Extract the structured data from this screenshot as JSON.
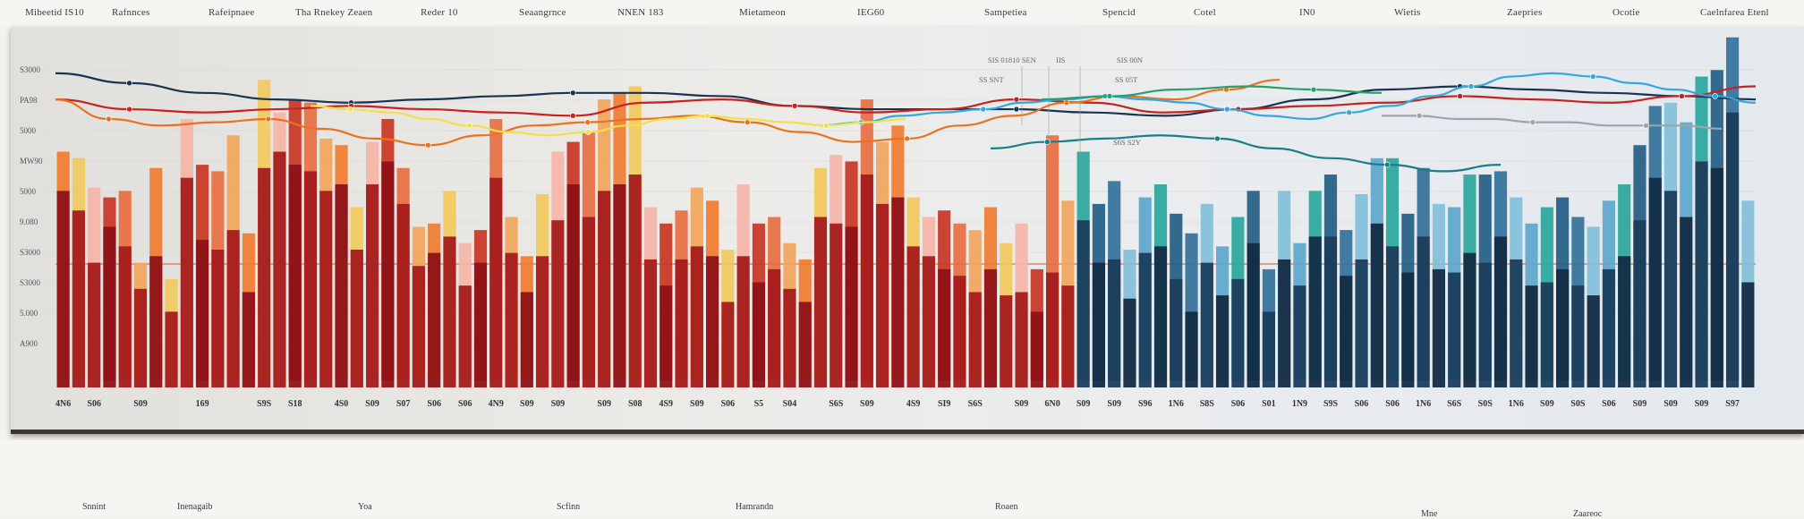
{
  "header": {
    "labels": [
      "Mibeetid IS10",
      "Rafnnces",
      "Rafeipnaee",
      "Tha Rnekey Zeaen",
      "Reder 10",
      "Seaangrnce",
      "NNEN 183",
      "Mietameon",
      "IEG60",
      "Sampetiea",
      "Spencid",
      "Cotel",
      "IN0",
      "Wietis",
      "Zaepries",
      "Ocotie",
      "Caelnfarea Etenl"
    ]
  },
  "footer": {
    "labels": [
      "Snnint",
      "Inenagaib",
      "Yoa",
      "Scfinn",
      "Hamrandn",
      "Roaen",
      "Mne",
      "Zaareoc"
    ]
  },
  "colors": {
    "warm_dark": "#8e1217",
    "warm_mid": "#c8321f",
    "warm_orange": "#ef7a2c",
    "warm_yellow": "#f2c95a",
    "warm_pink": "#f6b4a6",
    "cool_dark": "#132c45",
    "cool_mid": "#2f6f99",
    "cool_light": "#5aa6cc",
    "teal": "#26a69a",
    "line_navy": "#1a3352",
    "line_red": "#c4231f",
    "line_orange": "#e8731f",
    "line_blue": "#33a8dc",
    "line_teal": "#1c7d86",
    "line_yellow": "#f2e04a",
    "line_green": "#2a9d6a",
    "line_grey": "#9aa5ad"
  },
  "chart_data": {
    "type": "bar",
    "ylim": [
      0,
      10
    ],
    "ylabel": "",
    "xlabel": "",
    "y_ticks": [
      "S3000",
      "PA98",
      "5000",
      "MW90",
      "5000",
      "9.080",
      "S3000",
      "S3000",
      "5.000",
      "A900"
    ],
    "annotations": [
      "SIS 01810 SEN",
      "IIS",
      "SIS 00N",
      "SS SNT",
      "SS 05T",
      "S6S S2Y"
    ],
    "x_labels": [
      "4N6",
      "S06",
      "S09",
      "169",
      "S9S",
      "S18",
      "4S0",
      "S09",
      "S07",
      "S06",
      "S06",
      "4N9",
      "S09",
      "S09",
      "S09",
      "S08",
      "4S9",
      "S09",
      "S06",
      "S5",
      "S04",
      "S6S",
      "S09",
      "4S9",
      "SI9",
      "S6S",
      "S09",
      "6N0",
      "S09",
      "S09",
      "S96",
      "1N6",
      "S8S",
      "S06",
      "S01",
      "1N9",
      "S9S",
      "S06",
      "S06",
      "1N6",
      "S6S",
      "S0S",
      "1N6",
      "S09",
      "S0S",
      "S06",
      "S09",
      "S09",
      "S09",
      "S97"
    ],
    "x_label_positions": [
      0,
      2,
      5,
      9,
      13,
      15,
      18,
      20,
      22,
      24,
      26,
      28,
      30,
      32,
      35,
      37,
      39,
      41,
      43,
      45,
      47,
      50,
      52,
      55,
      57,
      59,
      62,
      64,
      66,
      68,
      70,
      72,
      74,
      76,
      78,
      80,
      82,
      84,
      86,
      88,
      90,
      92,
      94,
      96,
      98,
      100,
      102,
      104,
      106,
      108
    ],
    "series": [
      {
        "values": [
          5.8,
          5.2,
          3.6,
          4.7,
          4.1,
          2.8,
          3.8,
          2.1,
          6.2,
          4.3,
          4.0,
          4.6,
          2.7,
          6.5,
          7.0,
          6.6,
          6.4,
          5.8,
          6.0,
          4.0,
          6.0,
          6.7,
          5.4,
          3.5,
          3.9,
          4.4,
          2.9,
          3.6,
          6.2,
          3.9,
          2.7,
          3.8,
          4.9,
          6.0,
          5.0,
          5.8,
          6.0,
          6.3,
          3.7,
          2.9,
          3.7,
          4.1,
          3.8,
          2.4,
          3.8,
          3.0,
          3.4,
          2.8,
          2.4,
          5.0,
          4.8,
          4.7,
          6.3,
          5.4,
          5.6,
          4.1,
          3.8,
          3.4,
          3.2,
          2.7,
          3.4,
          2.6,
          2.7,
          2.1,
          3.3,
          2.9,
          4.9,
          3.6,
          3.7,
          2.5,
          3.9,
          4.1,
          3.1,
          2.1,
          3.6,
          2.6,
          3.1,
          4.2,
          2.1,
          3.7,
          2.9,
          4.4,
          4.4,
          3.2,
          3.7,
          4.8,
          4.1,
          3.3,
          4.4,
          3.4,
          3.3,
          3.9,
          3.6,
          4.4,
          3.7,
          2.9,
          3.0,
          3.4,
          2.9,
          2.6,
          3.4,
          3.8,
          4.9,
          6.2,
          5.8,
          5.0,
          6.7,
          6.5,
          8.2,
          3.0
        ]
      },
      {
        "values": [
          7.0,
          6.8,
          5.9,
          5.6,
          5.8,
          3.6,
          6.5,
          3.1,
          8.0,
          6.6,
          6.4,
          7.5,
          4.5,
          9.2,
          8.2,
          8.6,
          8.5,
          7.4,
          7.2,
          5.3,
          7.3,
          8.0,
          6.5,
          4.7,
          4.8,
          5.8,
          4.2,
          4.6,
          8.0,
          5.0,
          3.8,
          5.7,
          7.0,
          7.3,
          7.6,
          8.6,
          8.8,
          9.0,
          5.3,
          4.8,
          5.2,
          5.9,
          5.5,
          4.0,
          6.0,
          4.8,
          5.0,
          4.2,
          3.7,
          6.5,
          6.9,
          6.7,
          8.6,
          7.3,
          7.8,
          5.6,
          5.0,
          5.2,
          4.8,
          4.6,
          5.3,
          4.2,
          4.8,
          3.4,
          7.5,
          5.5,
          7.0,
          5.4,
          6.1,
          4.0,
          5.6,
          6.0,
          5.1,
          4.5,
          5.4,
          4.1,
          5.0,
          5.8,
          3.4,
          5.8,
          4.2,
          5.8,
          6.3,
          4.6,
          5.7,
          6.8,
          6.8,
          5.1,
          6.5,
          5.4,
          5.3,
          6.3,
          6.3,
          6.4,
          5.6,
          4.8,
          5.3,
          5.6,
          5.0,
          4.7,
          5.5,
          6.0,
          7.2,
          8.4,
          8.5,
          7.9,
          9.3,
          9.5,
          10.5,
          5.5
        ]
      }
    ],
    "lines": [
      {
        "color": "#1a3352",
        "values": [
          9.4,
          9.1,
          8.8,
          8.6,
          8.5,
          8.6,
          8.7,
          8.8,
          8.8,
          8.7,
          8.4,
          8.3,
          8.3,
          8.3,
          8.2,
          8.1,
          8.3,
          8.6,
          8.9,
          9.0,
          8.9,
          8.8,
          8.7,
          8.6
        ]
      },
      {
        "color": "#c4231f",
        "values": [
          8.6,
          8.3,
          8.2,
          8.3,
          8.4,
          8.3,
          8.2,
          8.1,
          8.5,
          8.6,
          8.4,
          8.2,
          8.3,
          8.6,
          8.5,
          8.2,
          8.3,
          8.4,
          8.5,
          8.7,
          8.6,
          8.5,
          8.7,
          9.0
        ]
      },
      {
        "color": "#e8731f",
        "values": [
          8.6,
          8.0,
          7.8,
          7.9,
          8.0,
          7.7,
          7.4,
          7.2,
          7.5,
          7.8,
          7.9,
          8.0,
          8.1,
          7.9,
          7.6,
          7.3,
          7.4,
          7.8,
          8.1,
          8.5,
          8.7,
          8.6,
          8.9,
          9.2
        ]
      },
      {
        "color": "#33a8dc",
        "values": [
          7.8,
          7.9,
          8.1,
          8.2,
          8.3,
          8.5,
          8.6,
          8.7,
          8.6,
          8.5,
          8.3,
          8.1,
          8.0,
          8.2,
          8.4,
          8.7,
          9.0,
          9.3,
          9.4,
          9.3,
          9.1,
          8.9,
          8.7,
          8.5
        ]
      },
      {
        "color": "#f2e04a",
        "values": [
          8.4,
          8.3,
          8.2,
          8.0,
          7.8,
          7.6,
          7.5,
          7.6,
          7.8,
          8.0,
          8.1,
          8.0,
          7.9,
          7.8,
          7.9,
          8.0
        ]
      },
      {
        "color": "#1c7d86",
        "values": [
          7.1,
          7.3,
          7.4,
          7.5,
          7.4,
          7.1,
          6.8,
          6.6,
          6.4,
          6.6
        ]
      },
      {
        "color": "#2a9d6a",
        "values": [
          8.6,
          8.7,
          8.9,
          9.0,
          8.9,
          8.8
        ]
      },
      {
        "color": "#9aa5ad",
        "values": [
          8.1,
          8.1,
          8.0,
          8.0,
          7.9,
          7.9,
          7.8,
          7.8,
          7.8,
          7.7
        ]
      }
    ]
  }
}
